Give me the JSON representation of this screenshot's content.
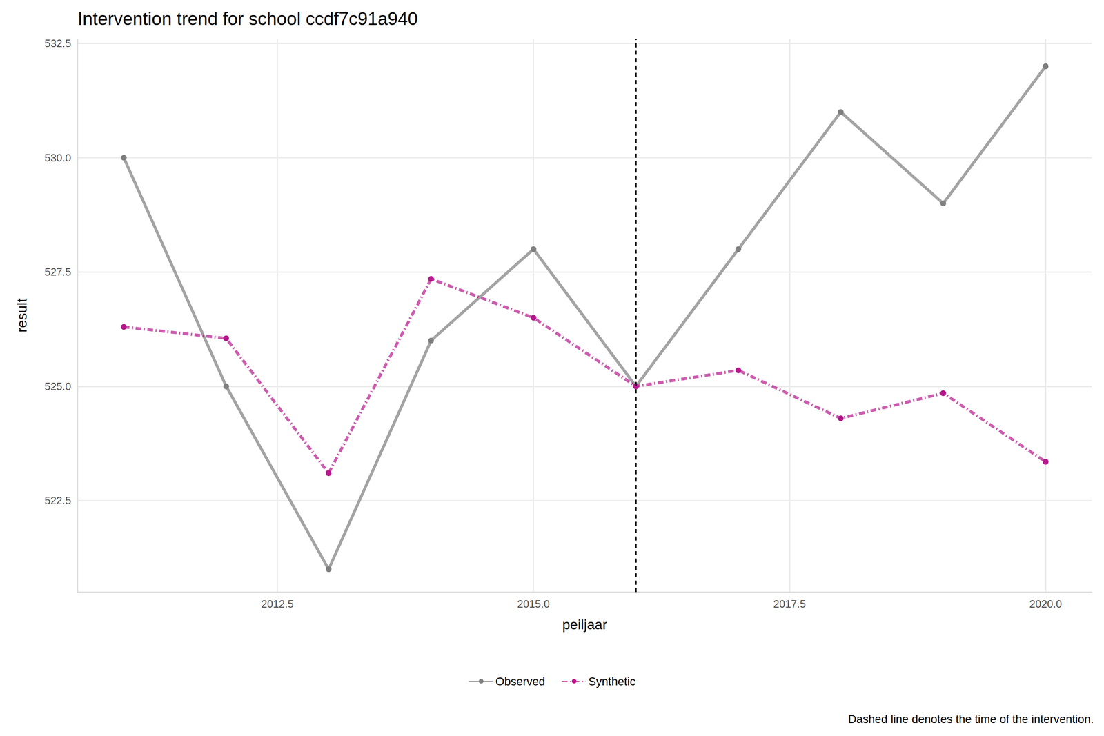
{
  "chart_data": {
    "type": "line",
    "title": "Intervention trend for school ccdf7c91a940",
    "x_label": "peiljaar",
    "y_label": "result",
    "caption": "Dashed line denotes the time of the intervention.",
    "intervention_x": 2016,
    "x": [
      2011,
      2012,
      2013,
      2014,
      2015,
      2016,
      2017,
      2018,
      2019,
      2020
    ],
    "series": [
      {
        "name": "Observed",
        "color": "#a3a3a3",
        "marker": "circle",
        "line_style": "solid",
        "values": [
          530,
          525,
          521,
          526,
          528,
          525,
          528,
          531,
          529,
          532
        ]
      },
      {
        "name": "Synthetic",
        "color": "#b5178b",
        "marker": "circle",
        "line_style": "dashdot",
        "values": [
          526.3,
          526.05,
          523.1,
          527.35,
          526.5,
          525.0,
          525.35,
          524.3,
          524.85,
          523.35
        ]
      }
    ],
    "xlim": [
      2010.55,
      2020.45
    ],
    "xticks": [
      2012.5,
      {
        "value": 2015,
        "label": "2015.0"
      },
      2017.5,
      {
        "value": 2020,
        "label": "2020.0"
      }
    ],
    "ylim": [
      520.5,
      532.6
    ],
    "yticks": [
      522.5,
      {
        "value": 525,
        "label": "525.0"
      },
      527.5,
      {
        "value": 530,
        "label": "530.0"
      },
      532.5
    ],
    "grid": true,
    "legend": "bottom"
  }
}
